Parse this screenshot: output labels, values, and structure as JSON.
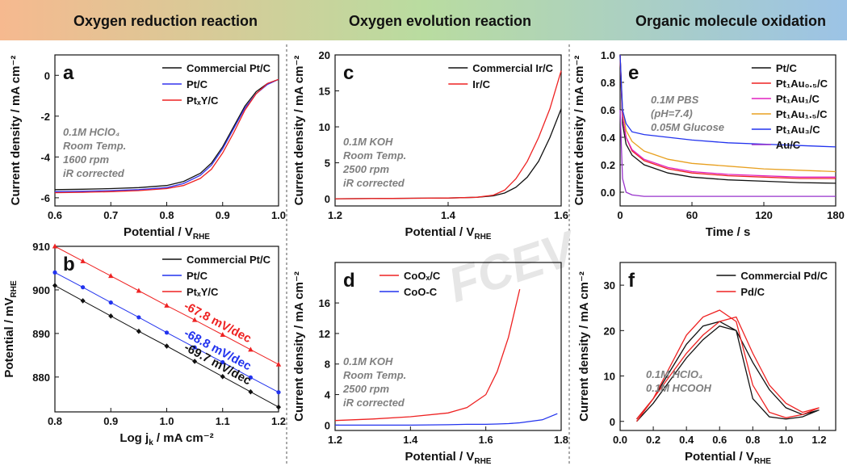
{
  "section_titles": [
    "Oxygen reduction reaction",
    "Oxygen evolution reaction",
    "Organic molecule oxidation"
  ],
  "watermark": "FCEV",
  "chart_data": [
    {
      "type": "line",
      "panel": "a",
      "xlabel": "Potential / V",
      "xlabel_sub": "RHE",
      "ylabel": "Current density / mA cm⁻²",
      "x": [
        0.6,
        0.65,
        0.7,
        0.75,
        0.8,
        0.83,
        0.86,
        0.88,
        0.9,
        0.92,
        0.94,
        0.96,
        0.98,
        1.0
      ],
      "series": [
        {
          "name": "Commercial Pt/C",
          "color": "#111111",
          "values": [
            -5.6,
            -5.58,
            -5.55,
            -5.5,
            -5.4,
            -5.2,
            -4.8,
            -4.3,
            -3.5,
            -2.5,
            -1.5,
            -0.8,
            -0.4,
            -0.2
          ]
        },
        {
          "name": "Pt/C",
          "color": "#3333ee",
          "values": [
            -5.7,
            -5.68,
            -5.65,
            -5.6,
            -5.5,
            -5.3,
            -4.9,
            -4.4,
            -3.6,
            -2.6,
            -1.6,
            -0.9,
            -0.45,
            -0.2
          ]
        },
        {
          "name": "PtₓY/C",
          "color": "#ee2222",
          "values": [
            -5.75,
            -5.73,
            -5.7,
            -5.65,
            -5.55,
            -5.4,
            -5.05,
            -4.6,
            -3.8,
            -2.8,
            -1.7,
            -0.9,
            -0.4,
            -0.2
          ]
        }
      ],
      "xlim": [
        0.6,
        1.0
      ],
      "xticks": [
        0.6,
        0.7,
        0.8,
        0.9,
        {
          "value": 1.0,
          "label": "1.0"
        }
      ],
      "ylim": [
        -6.4,
        1.0
      ],
      "yticks": [
        -6,
        -4,
        -2,
        0
      ],
      "legend": "upper right",
      "annotation": [
        "0.1M HClO₄",
        "Room Temp.",
        "1600 rpm",
        "iR corrected"
      ]
    },
    {
      "type": "scatter",
      "panel": "b",
      "xlabel": "Log j",
      "xlabel_sub": "k",
      "xlabel_after": " / mA cm⁻²",
      "ylabel": "Potential / mV",
      "ylabel_sub": "RHE",
      "x": [
        0.8,
        0.85,
        0.9,
        0.95,
        1.0,
        1.05,
        1.1,
        1.15,
        1.2
      ],
      "series": [
        {
          "name": "Commercial Pt/C",
          "color": "#111111",
          "marker": "diamond",
          "values": [
            901,
            897.5,
            894.0,
            890.5,
            887.1,
            883.6,
            880.1,
            876.6,
            873.1
          ]
        },
        {
          "name": "Pt/C",
          "color": "#2233ee",
          "marker": "circle",
          "values": [
            904,
            900.6,
            897.1,
            893.7,
            890.2,
            886.8,
            883.4,
            879.9,
            876.5
          ]
        },
        {
          "name": "PtₓY/C",
          "color": "#ee2222",
          "marker": "triangle",
          "values": [
            910,
            906.6,
            903.2,
            899.8,
            896.4,
            893.1,
            889.7,
            886.3,
            882.9
          ]
        }
      ],
      "slope_labels": [
        "-69.7 mV/dec",
        "-68.8 mV/dec",
        "-67.8 mV/dec"
      ],
      "xlim": [
        0.8,
        1.2
      ],
      "xticks": [
        0.8,
        0.9,
        {
          "value": 1.0,
          "label": "1.0"
        },
        1.1,
        1.2
      ],
      "ylim": [
        872,
        910
      ],
      "yticks": [
        880,
        890,
        900,
        910
      ],
      "legend": "upper right"
    },
    {
      "type": "line",
      "panel": "c",
      "xlabel": "Potential / V",
      "xlabel_sub": "RHE",
      "ylabel": "Current density / mA cm⁻²",
      "x": [
        1.2,
        1.3,
        1.4,
        1.45,
        1.48,
        1.5,
        1.52,
        1.54,
        1.56,
        1.58,
        1.6
      ],
      "series": [
        {
          "name": "Commercial Ir/C",
          "color": "#111111",
          "values": [
            0,
            0.05,
            0.1,
            0.2,
            0.4,
            0.8,
            1.6,
            3.0,
            5.2,
            8.5,
            12.5
          ]
        },
        {
          "name": "Ir/C",
          "color": "#ee2222",
          "values": [
            0,
            0.05,
            0.1,
            0.2,
            0.5,
            1.2,
            2.8,
            5.2,
            8.5,
            12.5,
            17.8
          ]
        }
      ],
      "xlim": [
        1.2,
        1.6
      ],
      "xticks": [
        1.2,
        1.4,
        1.6
      ],
      "ylim": [
        -1,
        20
      ],
      "yticks": [
        0,
        5,
        10,
        15,
        20
      ],
      "legend": "upper right",
      "annotation": [
        "0.1M KOH",
        "Room Temp.",
        "2500 rpm",
        "iR corrected"
      ]
    },
    {
      "type": "line",
      "panel": "d",
      "xlabel": "Potential / V",
      "xlabel_sub": "RHE",
      "ylabel": "Current density / mA cm⁻²",
      "x": [
        1.2,
        1.3,
        1.4,
        1.5,
        1.55,
        1.6,
        1.63,
        1.66,
        1.69,
        1.75,
        1.79
      ],
      "series": [
        {
          "name": "CoOₓ/C",
          "color": "#ee2222",
          "values": [
            0.6,
            0.8,
            1.1,
            1.6,
            2.3,
            4.0,
            7.0,
            11.5,
            17.8,
            null,
            null
          ]
        },
        {
          "name": "CoO-C",
          "color": "#2233ee",
          "values": [
            0,
            0,
            0,
            0.05,
            0.1,
            0.1,
            0.15,
            0.2,
            0.3,
            0.7,
            1.5
          ]
        }
      ],
      "xlim": [
        1.2,
        1.8
      ],
      "xticks": [
        1.2,
        1.4,
        1.6,
        1.8
      ],
      "ylim": [
        -0.7,
        21.3
      ],
      "yticks": [
        0,
        4,
        8,
        12,
        16
      ],
      "legend": "upper center",
      "annotation": [
        "0.1M KOH",
        "Room Temp.",
        "2500 rpm",
        "iR corrected"
      ]
    },
    {
      "type": "line",
      "panel": "e",
      "xlabel": "Time / s",
      "ylabel": "Current density / mA cm⁻²",
      "x": [
        0,
        2,
        5,
        10,
        20,
        40,
        60,
        90,
        120,
        150,
        180
      ],
      "series": [
        {
          "name": "Pt/C",
          "color": "#111111",
          "values": [
            1.0,
            0.5,
            0.35,
            0.27,
            0.2,
            0.14,
            0.11,
            0.09,
            0.08,
            0.07,
            0.065
          ]
        },
        {
          "name": "Pt₁Au₀.₅/C",
          "color": "#ee2222",
          "values": [
            1.0,
            0.55,
            0.4,
            0.3,
            0.23,
            0.17,
            0.14,
            0.12,
            0.11,
            0.1,
            0.1
          ]
        },
        {
          "name": "Pt₁Au₁/C",
          "color": "#e020c0",
          "values": [
            1.0,
            0.55,
            0.4,
            0.31,
            0.24,
            0.18,
            0.15,
            0.13,
            0.12,
            0.11,
            0.11
          ]
        },
        {
          "name": "Pt₁Au₁.₅/C",
          "color": "#e8a020",
          "values": [
            1.0,
            0.6,
            0.45,
            0.37,
            0.3,
            0.24,
            0.21,
            0.19,
            0.17,
            0.16,
            0.15
          ]
        },
        {
          "name": "Pt₁Au₃/C",
          "color": "#2233ee",
          "values": [
            1.0,
            0.6,
            0.5,
            0.44,
            0.42,
            0.4,
            0.38,
            0.36,
            0.35,
            0.34,
            0.33
          ]
        },
        {
          "name": "Au/C",
          "color": "#9933cc",
          "values": [
            0.6,
            0.1,
            0.0,
            -0.02,
            -0.03,
            -0.03,
            -0.03,
            -0.03,
            -0.03,
            -0.03,
            -0.03
          ]
        }
      ],
      "xlim": [
        0,
        180
      ],
      "xticks": [
        0,
        60,
        120,
        180
      ],
      "ylim": [
        -0.1,
        1.0
      ],
      "yticks": [
        {
          "value": 0,
          "label": "0.0"
        },
        0.2,
        0.4,
        0.6,
        0.8,
        {
          "value": 1.0,
          "label": "1.0"
        }
      ],
      "legend": "upper right",
      "annotation": [
        "0.1M PBS",
        "(pH=7.4)",
        "0.05M Glucose"
      ]
    },
    {
      "type": "line",
      "panel": "f",
      "xlabel": "Potential / V",
      "xlabel_sub": "RHE",
      "ylabel": "Current density / mA cm⁻²",
      "series": [
        {
          "name": "Commercial Pd/C",
          "color": "#111111",
          "x": [
            0.1,
            0.2,
            0.3,
            0.4,
            0.5,
            0.6,
            0.7,
            0.8,
            0.9,
            1.0,
            1.1,
            1.2,
            1.2,
            1.1,
            1.0,
            0.9,
            0.8,
            0.7,
            0.6,
            0.5,
            0.4,
            0.3,
            0.2,
            0.1
          ],
          "values": [
            0,
            4,
            9,
            14,
            18,
            21,
            20,
            13,
            7,
            3,
            1.5,
            2.5,
            2.5,
            1,
            0.5,
            1,
            5,
            20,
            22,
            21,
            17,
            11,
            5,
            0.5
          ]
        },
        {
          "name": "Pd/C",
          "color": "#ee2222",
          "x": [
            0.1,
            0.2,
            0.3,
            0.4,
            0.5,
            0.6,
            0.7,
            0.8,
            0.9,
            1.0,
            1.1,
            1.2,
            1.2,
            1.1,
            1.0,
            0.9,
            0.8,
            0.7,
            0.6,
            0.5,
            0.4,
            0.3,
            0.2,
            0.1
          ],
          "values": [
            0,
            5,
            10,
            15,
            19,
            22,
            23,
            15,
            8,
            4,
            2,
            3,
            3,
            1.5,
            0.8,
            2,
            8,
            22,
            24.5,
            23,
            19,
            12,
            5,
            0.5
          ]
        }
      ],
      "xlim": [
        0,
        1.3
      ],
      "xticks": [
        {
          "value": 0,
          "label": "0.0"
        },
        0.2,
        0.4,
        0.6,
        0.8,
        {
          "value": 1.0,
          "label": "1.0"
        },
        1.2
      ],
      "ylim": [
        -2,
        35
      ],
      "yticks": [
        0,
        10,
        20,
        30
      ],
      "legend": "upper right",
      "annotation": [
        "0.1M HClO₄",
        "0.1M HCOOH"
      ]
    }
  ]
}
